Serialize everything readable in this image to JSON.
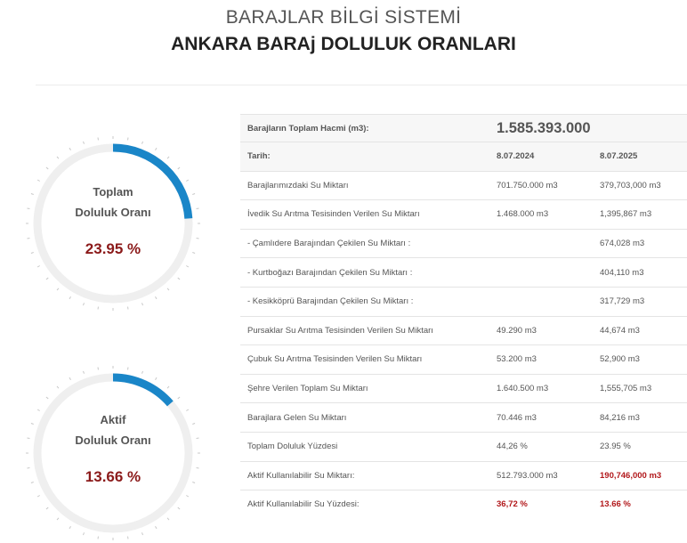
{
  "header": {
    "system_title": "BARAJLAR BİLGİ SİSTEMİ",
    "page_title": "ANKARA BARAj DOLULUK ORANLARI"
  },
  "gauges": [
    {
      "label_line1": "Toplam",
      "label_line2": "Doluluk Oranı",
      "value": "23.95 %",
      "percent": 23.95
    },
    {
      "label_line1": "Aktif",
      "label_line2": "Doluluk Oranı",
      "value": "13.66 %",
      "percent": 13.66
    }
  ],
  "colors": {
    "accent": "#1a86c8",
    "track": "#efefef",
    "value_red": "#8b1a1a",
    "highlight_red": "#b2181b"
  },
  "table": {
    "total_label": "Barajların Toplam Hacmi (m3):",
    "total_value": "1.585.393.000",
    "date_label": "Tarih:",
    "date_1": "8.07.2024",
    "date_2": "8.07.2025",
    "rows": [
      {
        "label": "Barajlarımızdaki Su Miktarı",
        "v1": "701.750.000 m3",
        "v2": "379,703,000 m3"
      },
      {
        "label": "İvedik Su Arıtma Tesisinden Verilen Su Miktarı",
        "v1": "1.468.000 m3",
        "v2": "1,395,867 m3"
      },
      {
        "label": "- Çamlıdere Barajından Çekilen Su Miktarı :",
        "v1": "",
        "v2": "674,028 m3"
      },
      {
        "label": "- Kurtboğazı Barajından Çekilen Su Miktarı :",
        "v1": "",
        "v2": "404,110 m3"
      },
      {
        "label": "- Kesikköprü Barajından Çekilen Su Miktarı :",
        "v1": "",
        "v2": "317,729 m3"
      },
      {
        "label": "Pursaklar Su Arıtma Tesisinden Verilen Su Miktarı",
        "v1": "49.290 m3",
        "v2": "44,674 m3"
      },
      {
        "label": "Çubuk Su Arıtma Tesisinden Verilen Su Miktarı",
        "v1": "53.200 m3",
        "v2": "52,900 m3"
      },
      {
        "label": "Şehre Verilen Toplam Su Miktarı",
        "v1": "1.640.500 m3",
        "v2": "1,555,705 m3"
      },
      {
        "label": "Barajlara Gelen Su Miktarı",
        "v1": "70.446 m3",
        "v2": "84,216 m3"
      },
      {
        "label": "Toplam Doluluk Yüzdesi",
        "v1": "44,26 %",
        "v2": "23.95 %"
      },
      {
        "label": "Aktif Kullanılabilir Su Miktarı:",
        "v1": "512.793.000 m3",
        "v2": "190,746,000 m3"
      },
      {
        "label": "Aktif Kullanılabilir Su Yüzdesi:",
        "v1": "36,72 %",
        "v2": "13.66 %"
      }
    ]
  }
}
